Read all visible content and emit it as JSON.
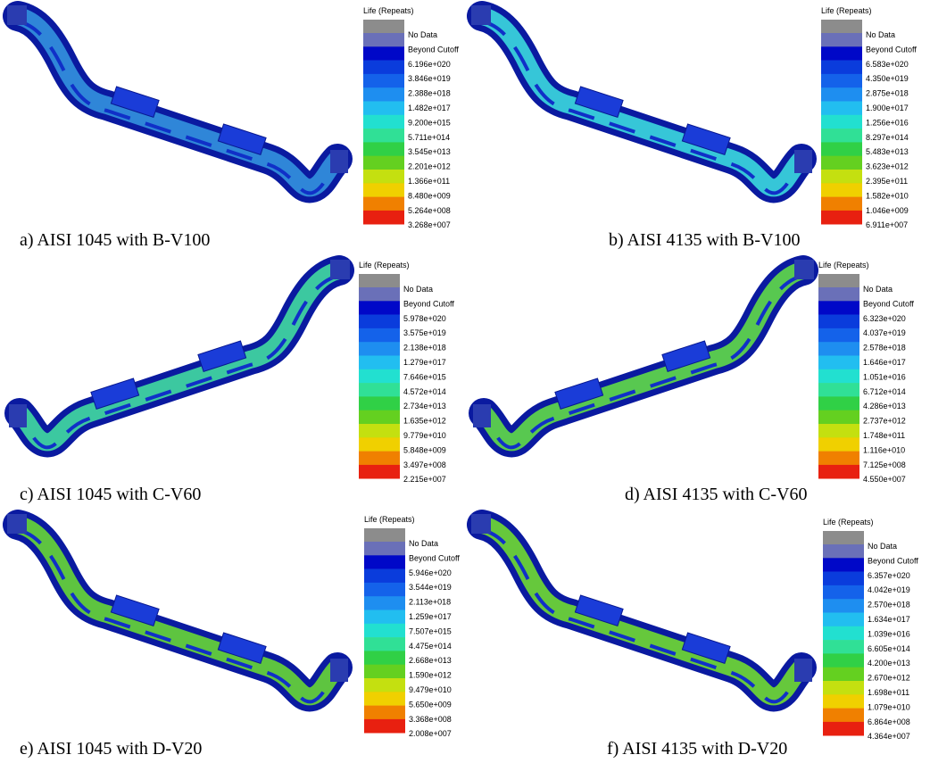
{
  "panels": [
    {
      "caption": "a) AISI 1045 with B-V100",
      "legend": {
        "title": "Life (Repeats)",
        "labels": [
          "No Data",
          "Beyond Cutoff",
          "6.196e+020",
          "3.846e+019",
          "2.388e+018",
          "1.482e+017",
          "9.200e+015",
          "5.711e+014",
          "3.545e+013",
          "2.201e+012",
          "1.366e+011",
          "8.480e+009",
          "5.264e+008",
          "3.268e+007"
        ]
      }
    },
    {
      "caption": "b) AISI 4135 with B-V100",
      "legend": {
        "title": "Life (Repeats)",
        "labels": [
          "No Data",
          "Beyond Cutoff",
          "6.583e+020",
          "4.350e+019",
          "2.875e+018",
          "1.900e+017",
          "1.256e+016",
          "8.297e+014",
          "5.483e+013",
          "3.623e+012",
          "2.395e+011",
          "1.582e+010",
          "1.046e+009",
          "6.911e+007"
        ]
      }
    },
    {
      "caption": "c) AISI 1045 with C-V60",
      "legend": {
        "title": "Life (Repeats)",
        "labels": [
          "No Data",
          "Beyond Cutoff",
          "5.978e+020",
          "3.575e+019",
          "2.138e+018",
          "1.279e+017",
          "7.646e+015",
          "4.572e+014",
          "2.734e+013",
          "1.635e+012",
          "9.779e+010",
          "5.848e+009",
          "3.497e+008",
          "2.215e+007"
        ]
      }
    },
    {
      "caption": "d) AISI 4135 with C-V60",
      "legend": {
        "title": "Life (Repeats)",
        "labels": [
          "No Data",
          "Beyond Cutoff",
          "6.323e+020",
          "4.037e+019",
          "2.578e+018",
          "1.646e+017",
          "1.051e+016",
          "6.712e+014",
          "4.286e+013",
          "2.737e+012",
          "1.748e+011",
          "1.116e+010",
          "7.125e+008",
          "4.550e+007"
        ]
      }
    },
    {
      "caption": "e) AISI 1045 with D-V20",
      "legend": {
        "title": "Life (Repeats)",
        "labels": [
          "No Data",
          "Beyond Cutoff",
          "5.946e+020",
          "3.544e+019",
          "2.113e+018",
          "1.259e+017",
          "7.507e+015",
          "4.475e+014",
          "2.668e+013",
          "1.590e+012",
          "9.479e+010",
          "5.650e+009",
          "3.368e+008",
          "2.008e+007"
        ]
      }
    },
    {
      "caption": "f) AISI 4135 with D-V20",
      "legend": {
        "title": "Life (Repeats)",
        "labels": [
          "No Data",
          "Beyond Cutoff",
          "6.357e+020",
          "4.042e+019",
          "2.570e+018",
          "1.634e+017",
          "1.039e+016",
          "6.605e+014",
          "4.200e+013",
          "2.670e+012",
          "1.698e+011",
          "1.079e+010",
          "6.864e+008",
          "4.364e+007"
        ]
      }
    }
  ]
}
